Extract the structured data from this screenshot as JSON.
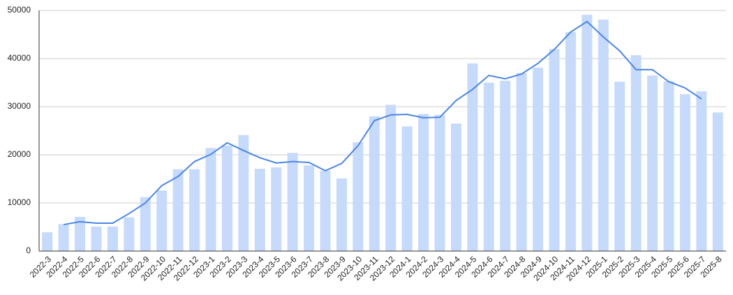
{
  "chart_data": {
    "type": "bar",
    "categories": [
      "2022-3",
      "2022-4",
      "2022-5",
      "2022-6",
      "2022-7",
      "2022-8",
      "2022-9",
      "2022-10",
      "2022-11",
      "2022-12",
      "2023-1",
      "2023-2",
      "2023-3",
      "2023-4",
      "2023-5",
      "2023-6",
      "2023-7",
      "2023-8",
      "2023-9",
      "2023-10",
      "2023-11",
      "2023-12",
      "2024-1",
      "2024-2",
      "2024-3",
      "2024-4",
      "2024-5",
      "2024-6",
      "2024-7",
      "2024-8",
      "2024-9",
      "2024-10",
      "2024-11",
      "2024-12",
      "2025-1",
      "2025-2",
      "2025-3",
      "2025-4",
      "2025-5",
      "2025-6",
      "2025-7",
      "2025-8"
    ],
    "series": [
      {
        "type": "bar",
        "color": "#c6dafc",
        "values": [
          3900,
          5600,
          7100,
          5100,
          5100,
          7000,
          11200,
          12600,
          17000,
          17000,
          21400,
          21900,
          24100,
          17100,
          17400,
          20400,
          17800,
          16700,
          15100,
          22600,
          28000,
          30400,
          25900,
          28500,
          28300,
          26500,
          39000,
          35000,
          35400,
          37000,
          38100,
          42000,
          45500,
          49100,
          48100,
          35200,
          40700,
          36500,
          35300,
          32600,
          33200,
          28800
        ]
      },
      {
        "type": "line",
        "color": "#4a86e8",
        "values": [
          null,
          5500,
          6100,
          5800,
          5800,
          7800,
          10000,
          13600,
          15500,
          18600,
          20100,
          22500,
          20900,
          19400,
          18300,
          18600,
          18400,
          16700,
          18200,
          21900,
          27100,
          28300,
          28400,
          27700,
          27800,
          31300,
          33600,
          36500,
          35800,
          36800,
          39000,
          41900,
          45500,
          47700,
          44500,
          41600,
          37700,
          37700,
          35200,
          33900,
          31600,
          null
        ]
      }
    ],
    "ylim": [
      0,
      50000
    ],
    "yticks": [
      0,
      10000,
      20000,
      30000,
      40000,
      50000
    ],
    "grid": true
  }
}
